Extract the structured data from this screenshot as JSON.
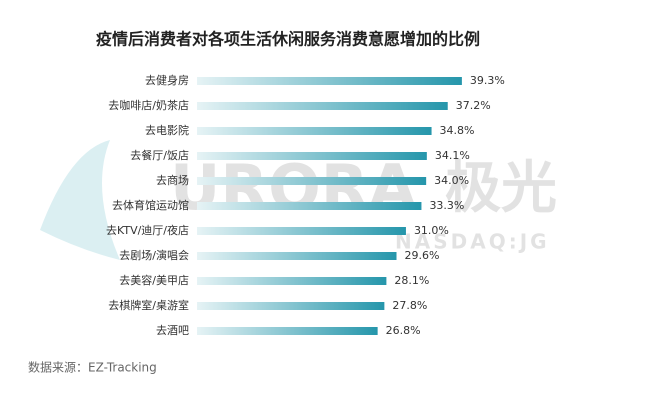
{
  "chart_data": {
    "type": "bar",
    "orientation": "horizontal",
    "title": "疫情后消费者对各项生活休闲服务消费意愿增加的比例",
    "categories": [
      "去健身房",
      "去咖啡店/奶茶店",
      "去电影院",
      "去餐厅/饭店",
      "去商场",
      "去体育馆运动馆",
      "去KTV/迪厅/夜店",
      "去剧场/演唱会",
      "去美容/美甲店",
      "去棋牌室/桌游室",
      "去酒吧"
    ],
    "values": [
      39.3,
      37.2,
      34.8,
      34.1,
      34.0,
      33.3,
      31.0,
      29.6,
      28.1,
      27.8,
      26.8
    ],
    "value_labels": [
      "39.3%",
      "37.2%",
      "34.8%",
      "34.1%",
      "34.0%",
      "33.3%",
      "31.0%",
      "29.6%",
      "28.1%",
      "27.8%",
      "26.8%"
    ],
    "color": "#2596ab",
    "source": "数据来源：EZ-Tracking",
    "watermark": {
      "brand": "URORA",
      "brand_cn": "极光",
      "ticker": "NASDAQ:JG"
    }
  }
}
